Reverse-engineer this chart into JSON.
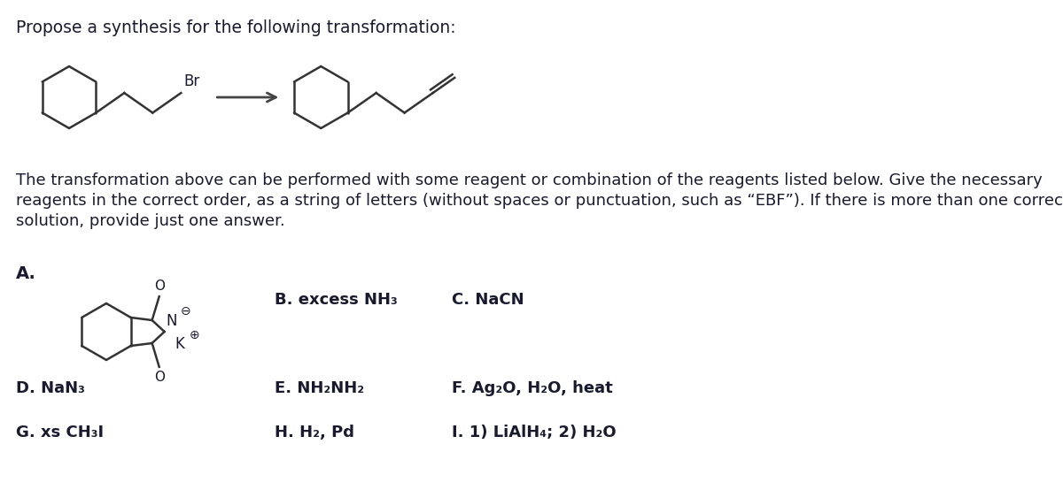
{
  "title_text": "Propose a synthesis for the following transformation:",
  "description_line1": "The transformation above can be performed with some reagent or combination of the reagents listed below. Give the necessary",
  "description_line2": "reagents in the correct order, as a string of letters (without spaces or punctuation, such as “EBF”). If there is more than one correct",
  "description_line3": "solution, provide just one answer.",
  "reagent_A_label": "A.",
  "reagent_B": "B. excess NH₃",
  "reagent_C": "C. NaCN",
  "reagent_D": "D. NaN₃",
  "reagent_E": "E. NH₂NH₂",
  "reagent_F": "F. Ag₂O, H₂O, heat",
  "reagent_G": "G. xs CH₃I",
  "reagent_H": "H. H₂, Pd",
  "reagent_I": "I. 1) LiAlH₄; 2) H₂O",
  "bg_color": "#ffffff",
  "text_color": "#1a1a2e",
  "font_size_title": 13.5,
  "font_size_body": 13.0,
  "font_size_reagent": 13.0,
  "font_size_struct": 11.0
}
